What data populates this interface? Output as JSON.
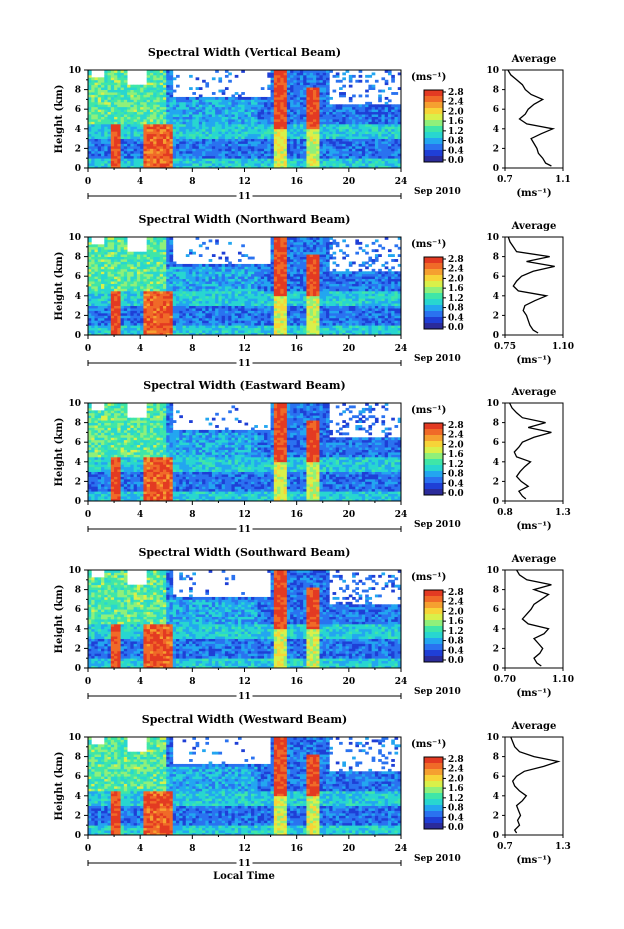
{
  "date_label": "Sep 2010",
  "day_label": "11",
  "xlabel": "Local Time",
  "colorbar": {
    "unit": "(ms⁻¹)",
    "ticks": [
      "2.8",
      "2.4",
      "2.0",
      "1.6",
      "1.2",
      "0.8",
      "0.4",
      "0.0"
    ],
    "colors": [
      "#2b2b9a",
      "#1f3fd6",
      "#2a72f0",
      "#23a6f0",
      "#28d6d0",
      "#3fe6a8",
      "#8ff07a",
      "#d9f04a",
      "#f7d438",
      "#f5a030",
      "#f06a28",
      "#e33a22"
    ]
  },
  "chart_data": [
    {
      "type": "heatmap",
      "title": "Spectral Width (Vertical Beam)",
      "xlabel": "Local Time",
      "ylabel": "Height (km)",
      "xlim": [
        0,
        24
      ],
      "ylim": [
        0,
        10
      ],
      "xticks": [
        0,
        4,
        8,
        12,
        16,
        20,
        24
      ],
      "yticks": [
        0,
        2,
        4,
        6,
        8,
        10
      ],
      "colorbar_range": [
        0.0,
        2.8
      ],
      "profile": {
        "title": "Average",
        "xlabel": "(ms⁻¹)",
        "xlim": [
          0.7,
          1.1
        ],
        "xticks": [
          "0.7",
          "1.1"
        ],
        "height": [
          0.2,
          0.5,
          1.0,
          1.5,
          2.0,
          2.5,
          3.0,
          3.5,
          4.0,
          4.5,
          5.0,
          5.5,
          6.0,
          6.5,
          7.0,
          7.5,
          8.0,
          8.5,
          9.0,
          9.5,
          10.0
        ],
        "values": [
          1.02,
          0.98,
          0.96,
          0.93,
          0.92,
          0.9,
          0.88,
          0.95,
          1.03,
          0.85,
          0.8,
          0.84,
          0.86,
          0.9,
          0.96,
          0.88,
          0.84,
          0.82,
          0.78,
          0.74,
          0.72
        ]
      }
    },
    {
      "type": "heatmap",
      "title": "Spectral Width (Northward Beam)",
      "xlabel": "Local Time",
      "ylabel": "Height (km)",
      "xlim": [
        0,
        24
      ],
      "ylim": [
        0,
        10
      ],
      "xticks": [
        0,
        4,
        8,
        12,
        16,
        20,
        24
      ],
      "yticks": [
        0,
        2,
        4,
        6,
        8,
        10
      ],
      "colorbar_range": [
        0.0,
        2.8
      ],
      "profile": {
        "title": "Average",
        "xlabel": "(ms⁻¹)",
        "xlim": [
          0.75,
          1.1
        ],
        "xticks": [
          "0.75",
          "1.10"
        ],
        "height": [
          0.2,
          0.5,
          1.0,
          1.5,
          2.0,
          2.5,
          3.0,
          3.5,
          4.0,
          4.5,
          5.0,
          5.5,
          6.0,
          6.5,
          7.0,
          7.5,
          8.0,
          8.5,
          9.0,
          9.5,
          10.0
        ],
        "values": [
          0.95,
          0.92,
          0.9,
          0.89,
          0.88,
          0.86,
          0.87,
          0.93,
          1.0,
          0.83,
          0.8,
          0.82,
          0.85,
          0.92,
          1.05,
          0.88,
          1.02,
          0.82,
          0.8,
          0.78,
          0.77
        ]
      }
    },
    {
      "type": "heatmap",
      "title": "Spectral Width (Eastward Beam)",
      "xlabel": "Local Time",
      "ylabel": "Height (km)",
      "xlim": [
        0,
        24
      ],
      "ylim": [
        0,
        10
      ],
      "xticks": [
        0,
        4,
        8,
        12,
        16,
        20,
        24
      ],
      "yticks": [
        0,
        2,
        4,
        6,
        8,
        10
      ],
      "colorbar_range": [
        0.0,
        2.8
      ],
      "profile": {
        "title": "Average",
        "xlabel": "(ms⁻¹)",
        "xlim": [
          0.8,
          1.3
        ],
        "xticks": [
          "0.8",
          "1.3"
        ],
        "height": [
          0.2,
          0.5,
          1.0,
          1.5,
          2.0,
          2.5,
          3.0,
          3.5,
          4.0,
          4.5,
          5.0,
          5.5,
          6.0,
          6.5,
          7.0,
          7.5,
          8.0,
          8.5,
          9.0,
          9.5,
          10.0
        ],
        "values": [
          0.98,
          0.95,
          0.92,
          1.0,
          0.94,
          0.9,
          0.93,
          0.97,
          1.02,
          0.9,
          0.88,
          0.92,
          0.95,
          1.05,
          1.2,
          1.0,
          1.15,
          0.95,
          0.9,
          0.86,
          0.84
        ]
      }
    },
    {
      "type": "heatmap",
      "title": "Spectral Width (Southward Beam)",
      "xlabel": "Local Time",
      "ylabel": "Height (km)",
      "xlim": [
        0,
        24
      ],
      "ylim": [
        0,
        10
      ],
      "xticks": [
        0,
        4,
        8,
        12,
        16,
        20,
        24
      ],
      "yticks": [
        0,
        2,
        4,
        6,
        8,
        10
      ],
      "colorbar_range": [
        0.0,
        2.8
      ],
      "profile": {
        "title": "Average",
        "xlabel": "(ms⁻¹)",
        "xlim": [
          0.7,
          1.1
        ],
        "xticks": [
          "0.70",
          "1.10"
        ],
        "height": [
          0.2,
          0.5,
          1.0,
          1.5,
          2.0,
          2.5,
          3.0,
          3.5,
          4.0,
          4.5,
          5.0,
          5.5,
          6.0,
          6.5,
          7.0,
          7.5,
          8.0,
          8.5,
          9.0,
          9.5,
          10.0
        ],
        "values": [
          0.95,
          0.92,
          0.9,
          0.94,
          0.96,
          0.93,
          0.9,
          0.97,
          1.0,
          0.86,
          0.82,
          0.85,
          0.88,
          0.9,
          0.95,
          1.0,
          0.9,
          1.02,
          0.85,
          0.8,
          0.78
        ]
      }
    },
    {
      "type": "heatmap",
      "title": "Spectral Width (Westward Beam)",
      "xlabel": "Local Time",
      "ylabel": "Height (km)",
      "xlim": [
        0,
        24
      ],
      "ylim": [
        0,
        10
      ],
      "xticks": [
        0,
        4,
        8,
        12,
        16,
        20,
        24
      ],
      "yticks": [
        0,
        2,
        4,
        6,
        8,
        10
      ],
      "colorbar_range": [
        0.0,
        2.8
      ],
      "profile": {
        "title": "Average",
        "xlabel": "(ms⁻¹)",
        "xlim": [
          0.7,
          1.3
        ],
        "xticks": [
          "0.7",
          "1.3"
        ],
        "height": [
          0.2,
          0.5,
          1.0,
          1.5,
          2.0,
          2.5,
          3.0,
          3.5,
          4.0,
          4.5,
          5.0,
          5.5,
          6.0,
          6.5,
          7.0,
          7.5,
          8.0,
          8.5,
          9.0,
          9.5,
          10.0
        ],
        "values": [
          0.82,
          0.8,
          0.85,
          0.83,
          0.86,
          0.84,
          0.82,
          0.88,
          0.92,
          0.85,
          0.8,
          0.78,
          0.82,
          0.9,
          1.1,
          1.25,
          1.0,
          0.85,
          0.8,
          0.78,
          0.76
        ]
      }
    }
  ]
}
